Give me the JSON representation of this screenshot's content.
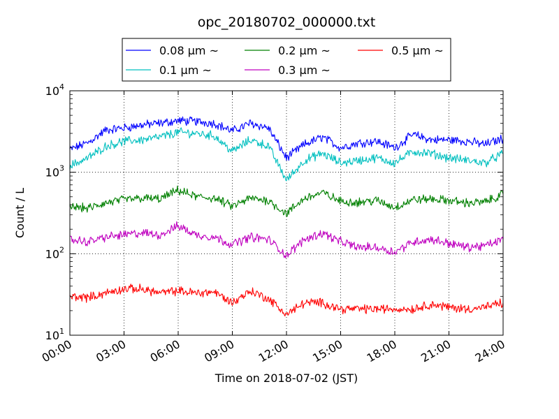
{
  "chart_data": {
    "type": "line",
    "title": "opc_20180702_000000.txt",
    "xlabel": "Time on 2018-07-02 (JST)",
    "ylabel": "Count / L",
    "yscale": "log",
    "ylim": [
      10,
      10000
    ],
    "xlim": [
      "00:00",
      "24:00"
    ],
    "grid": true,
    "legend_position": "top-center, above plot",
    "x_ticks": [
      "00:00",
      "03:00",
      "06:00",
      "09:00",
      "12:00",
      "15:00",
      "18:00",
      "21:00",
      "24:00"
    ],
    "y_ticks": [
      {
        "value": 10,
        "base": "10",
        "exp": "1"
      },
      {
        "value": 100,
        "base": "10",
        "exp": "2"
      },
      {
        "value": 1000,
        "base": "10",
        "exp": "3"
      },
      {
        "value": 10000,
        "base": "10",
        "exp": "4"
      }
    ],
    "x": [
      "00:00",
      "01:00",
      "02:00",
      "03:00",
      "04:00",
      "05:00",
      "06:00",
      "07:00",
      "08:00",
      "09:00",
      "10:00",
      "11:00",
      "12:00",
      "13:00",
      "14:00",
      "15:00",
      "16:00",
      "17:00",
      "18:00",
      "19:00",
      "20:00",
      "21:00",
      "22:00",
      "23:00",
      "24:00"
    ],
    "series": [
      {
        "name": "0.08 μm ~",
        "label_text": "0.08",
        "color": "#0000ff",
        "values": [
          1900,
          2300,
          3300,
          3500,
          3800,
          4000,
          4300,
          4200,
          4000,
          3200,
          4000,
          3500,
          1500,
          2200,
          2700,
          2000,
          2300,
          2400,
          2000,
          2900,
          2500,
          2500,
          2400,
          2200,
          2600
        ]
      },
      {
        "name": "0.1 μm ~",
        "label_text": "0.1",
        "color": "#00bfbf",
        "values": [
          1200,
          1500,
          2100,
          2400,
          2500,
          2700,
          3100,
          3000,
          2800,
          1800,
          2500,
          2100,
          800,
          1400,
          1700,
          1300,
          1400,
          1500,
          1300,
          1800,
          1700,
          1500,
          1400,
          1300,
          1700
        ]
      },
      {
        "name": "0.2 μm ~",
        "label_text": "0.2",
        "color": "#008000",
        "values": [
          380,
          360,
          420,
          460,
          480,
          470,
          600,
          500,
          480,
          380,
          480,
          450,
          310,
          480,
          560,
          440,
          430,
          450,
          370,
          460,
          470,
          450,
          420,
          430,
          540
        ]
      },
      {
        "name": "0.3 μm ~",
        "label_text": "0.3",
        "color": "#bf00bf",
        "values": [
          150,
          140,
          160,
          170,
          180,
          170,
          220,
          170,
          160,
          130,
          160,
          150,
          95,
          150,
          180,
          140,
          120,
          120,
          105,
          140,
          150,
          135,
          120,
          125,
          150
        ]
      },
      {
        "name": "0.5 μm ~",
        "label_text": "0.5",
        "color": "#ff0000",
        "values": [
          30,
          29,
          33,
          37,
          37,
          33,
          35,
          33,
          34,
          25,
          35,
          28,
          18,
          25,
          25,
          21,
          21,
          21,
          21,
          21,
          24,
          22,
          21,
          22,
          25
        ]
      }
    ]
  }
}
